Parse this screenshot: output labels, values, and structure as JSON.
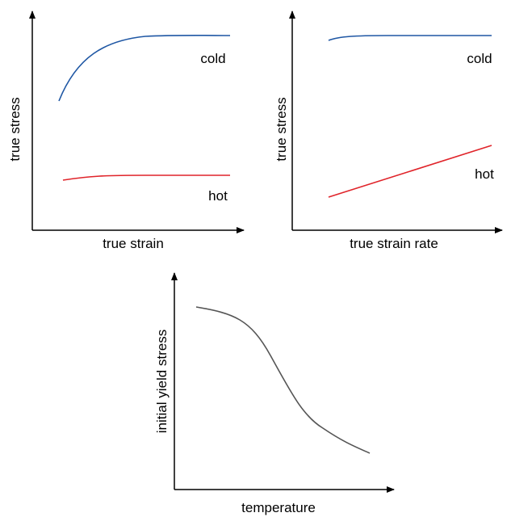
{
  "panels": [
    {
      "x_label": "true strain",
      "y_label": "true stress",
      "curves": [
        {
          "label": "cold"
        },
        {
          "label": "hot"
        }
      ]
    },
    {
      "x_label": "true strain rate",
      "y_label": "true stress",
      "curves": [
        {
          "label": "cold"
        },
        {
          "label": "hot"
        }
      ]
    },
    {
      "x_label": "temperature",
      "y_label": "initial yield stress"
    }
  ]
}
